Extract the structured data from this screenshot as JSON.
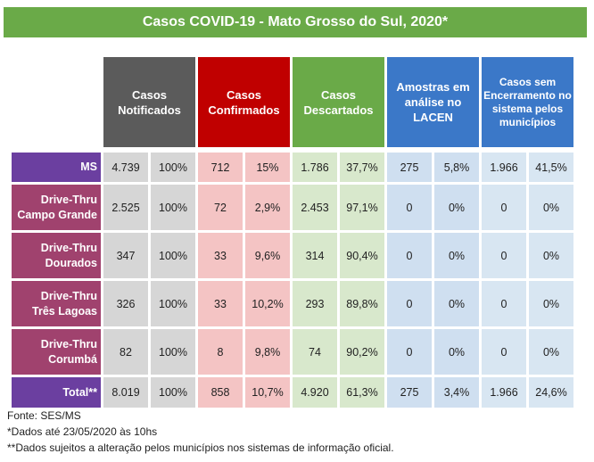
{
  "title": "Casos COVID-19 - Mato Grosso do Sul, 2020*",
  "colors": {
    "title_bg": "#6aaa48",
    "notificados": "#5b5b5b",
    "confirmados": "#c00000",
    "descartados": "#6aaa48",
    "lacen": "#3b78c8",
    "sem_encerramento": "#3b78c8",
    "row_label": "#a0426e",
    "row_label_alt": "#6b3fa0"
  },
  "headers": {
    "notificados": "Casos Notificados",
    "confirmados": "Casos Confirmados",
    "descartados": "Casos Descartados",
    "lacen": "Amostras em análise no LACEN",
    "sem_encerramento": "Casos sem Encerramento no sistema pelos municípios"
  },
  "rows": [
    {
      "label": "MS",
      "values": [
        "4.739",
        "100%",
        "712",
        "15%",
        "1.786",
        "37,7%",
        "275",
        "5,8%",
        "1.966",
        "41,5%"
      ]
    },
    {
      "label": "Drive-Thru\nCampo Grande",
      "values": [
        "2.525",
        "100%",
        "72",
        "2,9%",
        "2.453",
        "97,1%",
        "0",
        "0%",
        "0",
        "0%"
      ]
    },
    {
      "label": "Drive-Thru\nDourados",
      "values": [
        "347",
        "100%",
        "33",
        "9,6%",
        "314",
        "90,4%",
        "0",
        "0%",
        "0",
        "0%"
      ]
    },
    {
      "label": "Drive-Thru\nTrês Lagoas",
      "values": [
        "326",
        "100%",
        "33",
        "10,2%",
        "293",
        "89,8%",
        "0",
        "0%",
        "0",
        "0%"
      ]
    },
    {
      "label": "Drive-Thru\nCorumbá",
      "values": [
        "82",
        "100%",
        "8",
        "9,8%",
        "74",
        "90,2%",
        "0",
        "0%",
        "0",
        "0%"
      ]
    },
    {
      "label": "Total**",
      "values": [
        "8.019",
        "100%",
        "858",
        "10,7%",
        "4.920",
        "61,3%",
        "275",
        "3,4%",
        "1.966",
        "24,6%"
      ]
    }
  ],
  "notes": {
    "source": "Fonte: SES/MS",
    "date": "*Dados até 23/05/2020 às 10hs",
    "disclaimer": "**Dados sujeitos a alteração pelos municípios nos sistemas de informação oficial."
  }
}
